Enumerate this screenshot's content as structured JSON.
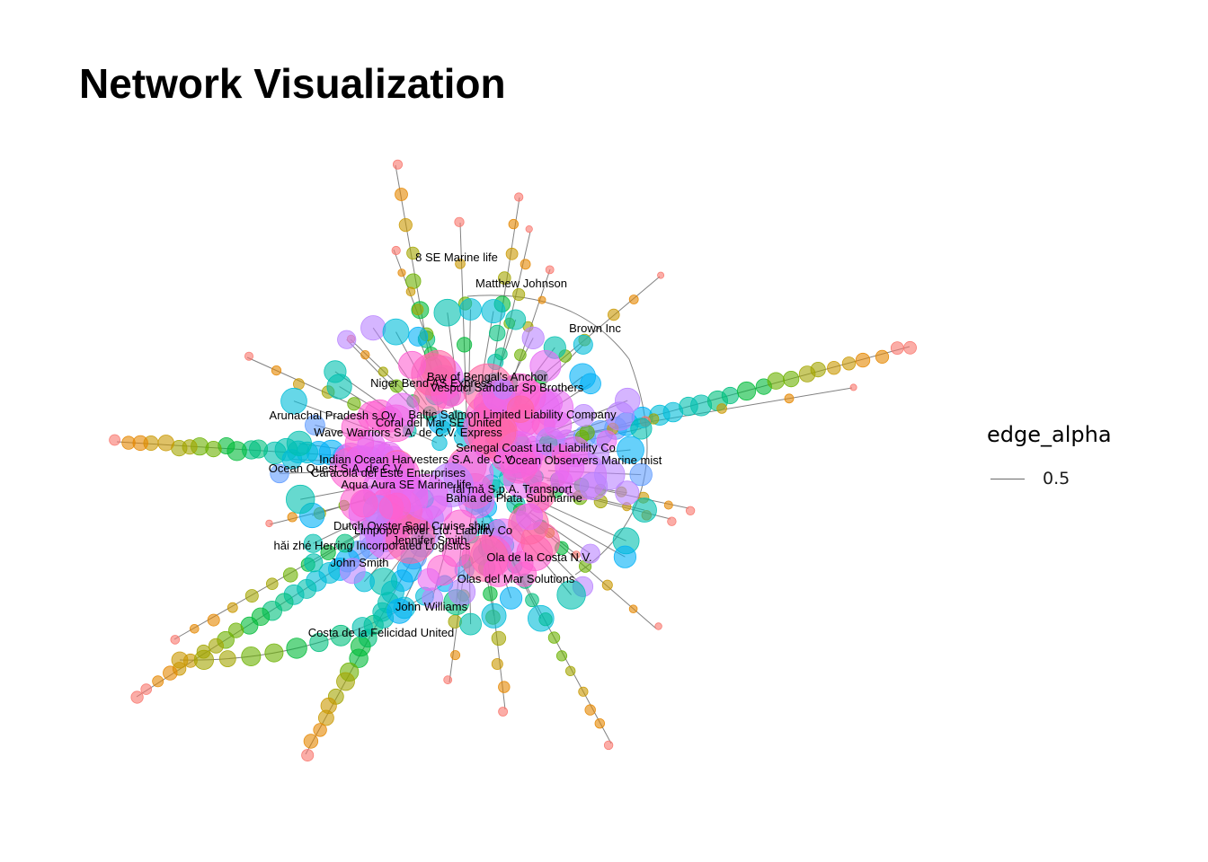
{
  "title": "Network Visualization",
  "legend": {
    "title": "edge_alpha",
    "items": [
      {
        "label": "0.5",
        "color": "#6b6b6b"
      }
    ]
  },
  "graph": {
    "edge_color": "#6b6b6b",
    "node_opacity": 0.6,
    "palette": [
      "#f8766d",
      "#e58700",
      "#c99800",
      "#a3a500",
      "#6bb100",
      "#00ba38",
      "#00bf7d",
      "#00c0af",
      "#00bcd8",
      "#00b0f6",
      "#619cff",
      "#b983ff",
      "#e76bf3",
      "#fd61d1",
      "#ff67a4"
    ],
    "labels": [
      "8 SE Marine life",
      "Matthew Johnson",
      "Brown Inc",
      "Bay of Bengal's Anchor",
      "Niger Bend  AS Express",
      "Vespuci Sandbar Sp Brothers",
      "Arunachal Pradesh s Oy",
      "Baltic Salmon Limited Liability Company",
      "Coral del Mar SE United",
      "Wave Warriors S.A. de C.V. Express",
      "Senegal Coast  Ltd. Liability Co",
      "Indian Ocean Harvesters S.A. de C.V.",
      "Ocean Observers Marine mist",
      "Ocean Quest S.A. de C.V.",
      "Caracola del Este Enterprises",
      "Aqua Aura SE Marine life",
      "fǎi mǎ S.p.A. Transport",
      "Bahía de Plata Submarine",
      "Dutch Oyster Sagl Cruise ship",
      "Limpopo River  Ltd. Liability Co",
      "Jennifer Smith",
      "hǎi zhé Herring Incorporated Logistics",
      "John Smith",
      "Ola de la Costa N.V.",
      "Olas del Mar Solutions",
      "John Williams",
      "Costa de la Felicidad United"
    ]
  }
}
